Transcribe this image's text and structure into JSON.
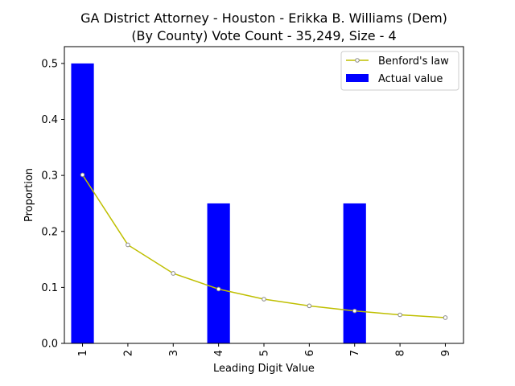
{
  "chart_data": {
    "type": "bar",
    "title_line1": "GA District Attorney - Houston - Erikka B. Williams (Dem)",
    "title_line2": "(By County) Vote Count - 35,249, Size - 4",
    "xlabel": "Leading Digit Value",
    "ylabel": "Proportion",
    "categories": [
      "1",
      "2",
      "3",
      "4",
      "5",
      "6",
      "7",
      "8",
      "9"
    ],
    "ylim": [
      0,
      0.53
    ],
    "yticks": [
      "0.0",
      "0.1",
      "0.2",
      "0.3",
      "0.4",
      "0.5"
    ],
    "series": [
      {
        "name": "Actual value",
        "type": "bar",
        "color": "#0000ff",
        "values": [
          0.5,
          0,
          0,
          0.25,
          0,
          0,
          0.25,
          0,
          0
        ]
      },
      {
        "name": "Benford's law",
        "type": "line",
        "color": "#bfbf00",
        "values": [
          0.301,
          0.176,
          0.125,
          0.097,
          0.079,
          0.067,
          0.058,
          0.051,
          0.046
        ]
      }
    ],
    "legend_position": "top-right",
    "grid": false
  }
}
